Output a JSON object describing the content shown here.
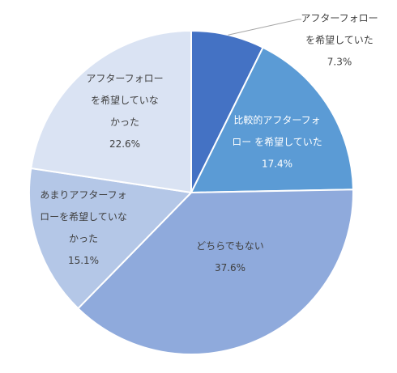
{
  "chart_data": {
    "type": "pie",
    "title": "",
    "categories": [
      "アフターフォローを希望していた",
      "比較的アフターフォローを希望していた",
      "どちらでもない",
      "あまりアフターフォローを希望していなかった",
      "アフターフォローを希望していなかった"
    ],
    "values": [
      7.3,
      17.4,
      37.6,
      15.1,
      22.6
    ],
    "value_labels": [
      "7.3%",
      "17.4%",
      "37.6%",
      "15.1%",
      "22.6%"
    ],
    "label_lines": [
      [
        "アフターフォロー",
        "を希望していた"
      ],
      [
        "比較的アフターフォ",
        "ロー を希望していた"
      ],
      [
        "どちらでもない"
      ],
      [
        "あまりアフターフォ",
        "ローを希望していな",
        "かった"
      ],
      [
        "アフターフォロー",
        "を希望していな",
        "かった"
      ]
    ],
    "colors": [
      "#4472c4",
      "#5b9bd5",
      "#8faadc",
      "#b4c7e7",
      "#dae3f3"
    ],
    "start_angle_deg": 0,
    "direction": "clockwise",
    "legend": "none",
    "data_labels": "inside; first slice outside with leader line"
  }
}
